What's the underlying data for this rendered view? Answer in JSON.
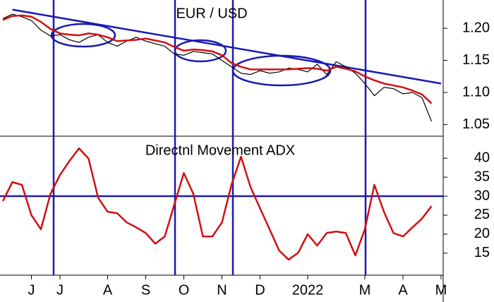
{
  "chart_data": [
    {
      "type": "line",
      "title": "EUR / USD",
      "ylim": [
        1.032,
        1.244
      ],
      "yticks": [
        1.05,
        {
          "value": 1.1,
          "label": "1.10"
        },
        1.15,
        {
          "value": 1.2,
          "label": "1.20"
        }
      ],
      "series": [
        {
          "color": "#000000",
          "values": [
            1.215,
            1.222,
            1.218,
            1.212,
            1.197,
            1.188,
            1.19,
            1.182,
            1.178,
            1.186,
            1.19,
            1.178,
            1.172,
            1.18,
            1.186,
            1.18,
            1.176,
            1.172,
            1.16,
            1.158,
            1.164,
            1.162,
            1.16,
            1.15,
            1.14,
            1.13,
            1.128,
            1.134,
            1.13,
            1.132,
            1.138,
            1.136,
            1.132,
            1.144,
            1.128,
            1.148,
            1.14,
            1.13,
            1.114,
            1.095,
            1.108,
            1.106,
            1.098,
            1.1,
            1.092,
            1.055,
            null
          ]
        },
        {
          "color": "#d01010",
          "values": [
            1.213,
            1.219,
            1.22,
            1.218,
            1.21,
            1.199,
            1.192,
            1.19,
            1.189,
            1.192,
            1.19,
            1.186,
            1.18,
            1.181,
            1.182,
            1.184,
            1.181,
            1.178,
            1.171,
            1.165,
            1.167,
            1.166,
            1.164,
            1.158,
            1.146,
            1.14,
            1.136,
            1.136,
            1.136,
            1.136,
            1.136,
            1.137,
            1.138,
            1.137,
            1.134,
            1.14,
            1.137,
            1.133,
            1.125,
            1.119,
            1.114,
            1.111,
            1.108,
            1.103,
            1.097,
            1.083,
            null
          ]
        }
      ],
      "trend_line": {
        "color": "#1a1ab0",
        "from": {
          "category": 1,
          "value": 1.229
        },
        "to": {
          "category": 46,
          "value": 1.114
        }
      }
    },
    {
      "type": "line",
      "title": "Directnl Movement ADX",
      "categories": [
        null,
        null,
        null,
        "J",
        null,
        null,
        "J",
        null,
        null,
        null,
        null,
        "A",
        null,
        null,
        null,
        "S",
        null,
        null,
        null,
        "O",
        null,
        null,
        null,
        "N",
        null,
        null,
        null,
        "D",
        null,
        null,
        null,
        null,
        "2022",
        null,
        null,
        null,
        null,
        null,
        "M",
        null,
        null,
        null,
        "A",
        null,
        null,
        null,
        "M"
      ],
      "ylim": [
        9.2,
        45.8
      ],
      "yticks": [
        15,
        20,
        25,
        30,
        35,
        40
      ],
      "reference_line": {
        "value": 30,
        "color": "#1a1ab0"
      },
      "series": [
        {
          "color": "#d01010",
          "values": [
            28.7,
            33.7,
            33,
            25,
            21.3,
            30.6,
            35.6,
            39.3,
            42.6,
            39.9,
            29.6,
            25.9,
            25.5,
            23.1,
            21.8,
            20.3,
            17.5,
            19.4,
            27.8,
            36.1,
            30.6,
            19.4,
            19.4,
            23.1,
            33,
            40.4,
            32.4,
            26.8,
            21.3,
            15.7,
            13.3,
            15.1,
            20,
            17,
            20.3,
            20.7,
            20.3,
            14.4,
            21.3,
            33,
            25.9,
            20.3,
            19.4,
            21.8,
            24.1,
            27.4,
            null
          ]
        }
      ]
    }
  ]
}
